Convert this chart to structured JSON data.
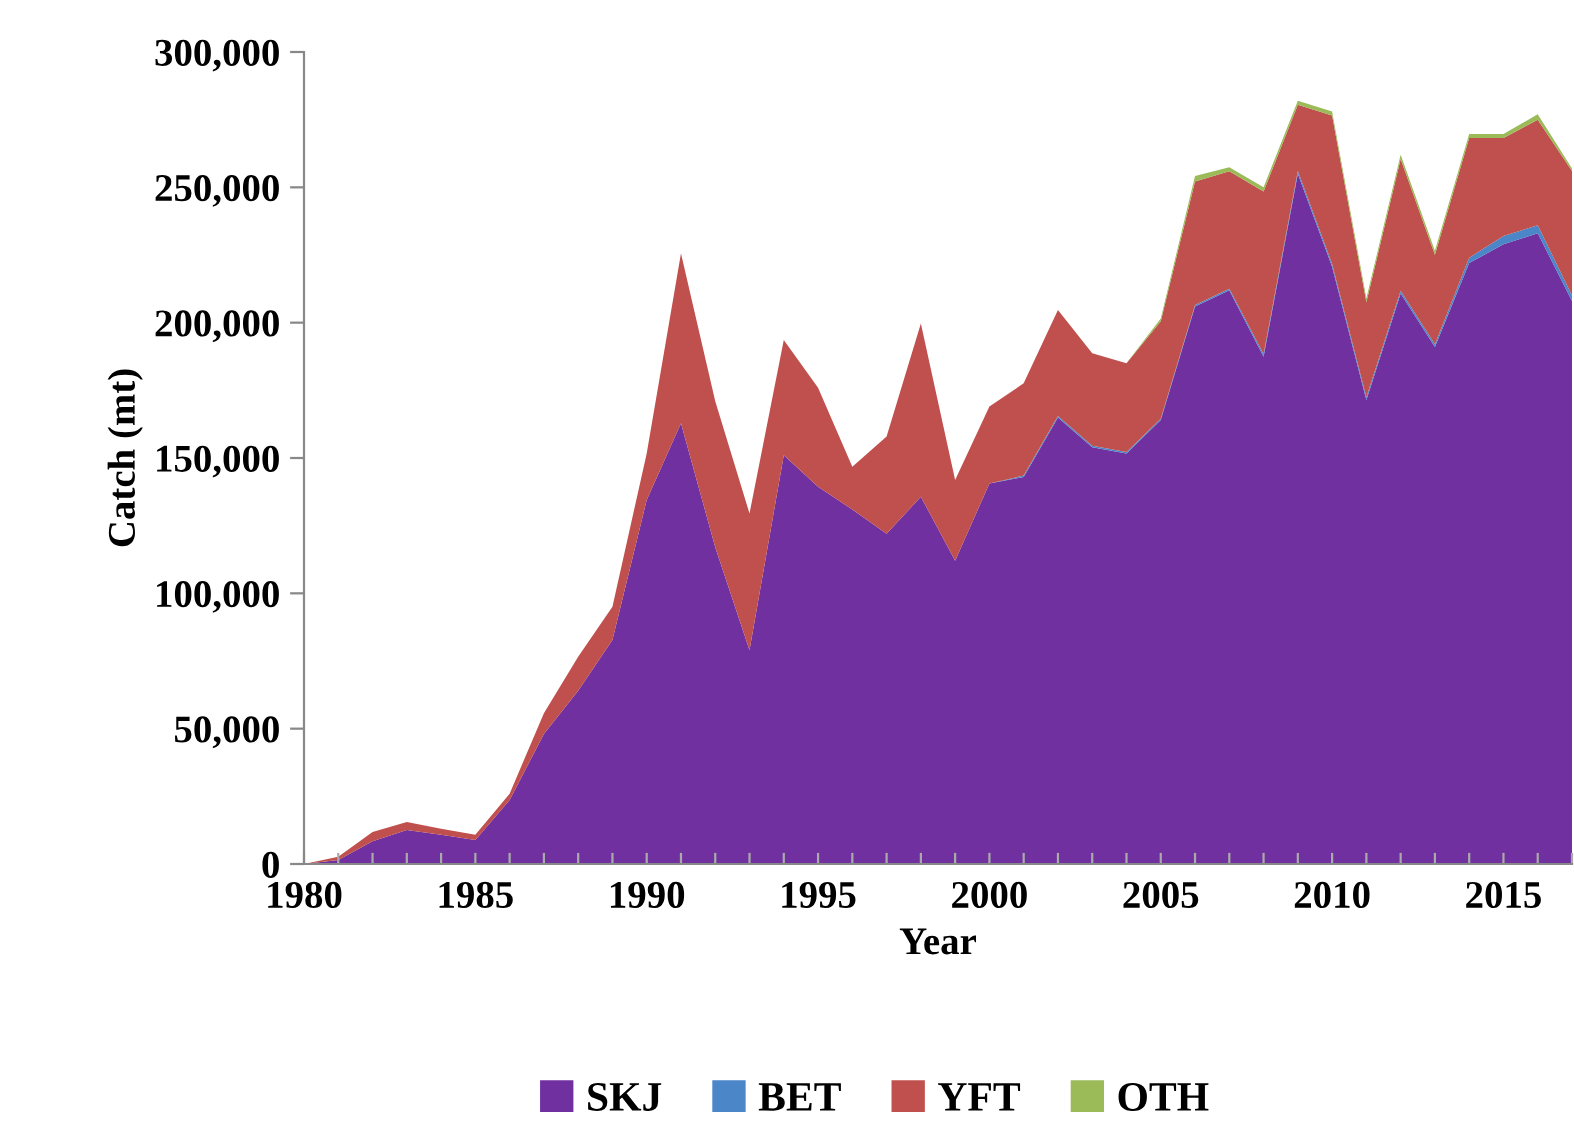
{
  "chart_data": {
    "type": "area",
    "stacked": true,
    "xlabel": "Year",
    "ylabel": "Catch (mt)",
    "x": [
      1980,
      1981,
      1982,
      1983,
      1984,
      1985,
      1986,
      1987,
      1988,
      1989,
      1990,
      1991,
      1992,
      1993,
      1994,
      1995,
      1996,
      1997,
      1998,
      1999,
      2000,
      2001,
      2002,
      2003,
      2004,
      2005,
      2006,
      2007,
      2008,
      2009,
      2010,
      2011,
      2012,
      2013,
      2014,
      2015,
      2016,
      2017
    ],
    "series": [
      {
        "name": "SKJ",
        "color": "#7030a0",
        "values": [
          0,
          1500,
          8400,
          12600,
          10800,
          8900,
          23600,
          48000,
          64000,
          82800,
          134500,
          162800,
          117000,
          79000,
          151000,
          139400,
          131000,
          122000,
          135700,
          112000,
          140600,
          143000,
          165000,
          154000,
          151700,
          164000,
          206000,
          212000,
          187400,
          255000,
          220700,
          171400,
          210800,
          191000,
          222000,
          229000,
          233000,
          208000
        ]
      },
      {
        "name": "BET",
        "color": "#4a86c8",
        "values": [
          0,
          0,
          0,
          0,
          0,
          0,
          0,
          0,
          0,
          0,
          0,
          0,
          0,
          0,
          0,
          0,
          0,
          0,
          0,
          0,
          0,
          500,
          500,
          500,
          500,
          500,
          500,
          500,
          1000,
          1000,
          1000,
          1000,
          1000,
          1000,
          2000,
          3000,
          3000,
          2000
        ]
      },
      {
        "name": "YFT",
        "color": "#c0504d",
        "values": [
          0,
          1200,
          3400,
          2900,
          2200,
          1900,
          2400,
          7700,
          12600,
          12200,
          17200,
          62800,
          54000,
          50500,
          42600,
          36600,
          15800,
          35900,
          64000,
          29900,
          28400,
          34100,
          39200,
          34200,
          32800,
          36000,
          45700,
          43400,
          60100,
          24500,
          54800,
          35100,
          48700,
          33100,
          44200,
          36200,
          39000,
          46000
        ]
      },
      {
        "name": "OTH",
        "color": "#9bbb59",
        "values": [
          0,
          0,
          0,
          0,
          0,
          0,
          0,
          0,
          0,
          0,
          0,
          0,
          0,
          0,
          0,
          0,
          0,
          0,
          0,
          0,
          0,
          0,
          0,
          0,
          0,
          1000,
          2000,
          1500,
          1500,
          1500,
          1500,
          1500,
          1500,
          1500,
          1500,
          1500,
          2000,
          1000
        ]
      }
    ],
    "xlim": [
      1980,
      2017
    ],
    "xticks": [
      1980,
      {
        "value": 1981,
        "label": null
      },
      {
        "value": 1982,
        "label": null
      },
      {
        "value": 1983,
        "label": null
      },
      {
        "value": 1984,
        "label": null
      },
      1985,
      {
        "value": 1986,
        "label": null
      },
      {
        "value": 1987,
        "label": null
      },
      {
        "value": 1988,
        "label": null
      },
      {
        "value": 1989,
        "label": null
      },
      1990,
      {
        "value": 1991,
        "label": null
      },
      {
        "value": 1992,
        "label": null
      },
      {
        "value": 1993,
        "label": null
      },
      {
        "value": 1994,
        "label": null
      },
      1995,
      {
        "value": 1996,
        "label": null
      },
      {
        "value": 1997,
        "label": null
      },
      {
        "value": 1998,
        "label": null
      },
      {
        "value": 1999,
        "label": null
      },
      2000,
      {
        "value": 2001,
        "label": null
      },
      {
        "value": 2002,
        "label": null
      },
      {
        "value": 2003,
        "label": null
      },
      {
        "value": 2004,
        "label": null
      },
      2005,
      {
        "value": 2006,
        "label": null
      },
      {
        "value": 2007,
        "label": null
      },
      {
        "value": 2008,
        "label": null
      },
      {
        "value": 2009,
        "label": null
      },
      2010,
      {
        "value": 2011,
        "label": null
      },
      {
        "value": 2012,
        "label": null
      },
      {
        "value": 2013,
        "label": null
      },
      {
        "value": 2014,
        "label": null
      },
      2015,
      {
        "value": 2016,
        "label": null
      },
      {
        "value": 2017,
        "label": null
      }
    ],
    "ylim": [
      0,
      300000
    ],
    "yticks": [
      0,
      {
        "value": 50000,
        "label": "50,000"
      },
      {
        "value": 100000,
        "label": "100,000"
      },
      {
        "value": 150000,
        "label": "150,000"
      },
      {
        "value": 200000,
        "label": "200,000"
      },
      {
        "value": 250000,
        "label": "250,000"
      },
      {
        "value": 300000,
        "label": "300,000"
      }
    ],
    "grid": false,
    "legend": "bottom"
  }
}
